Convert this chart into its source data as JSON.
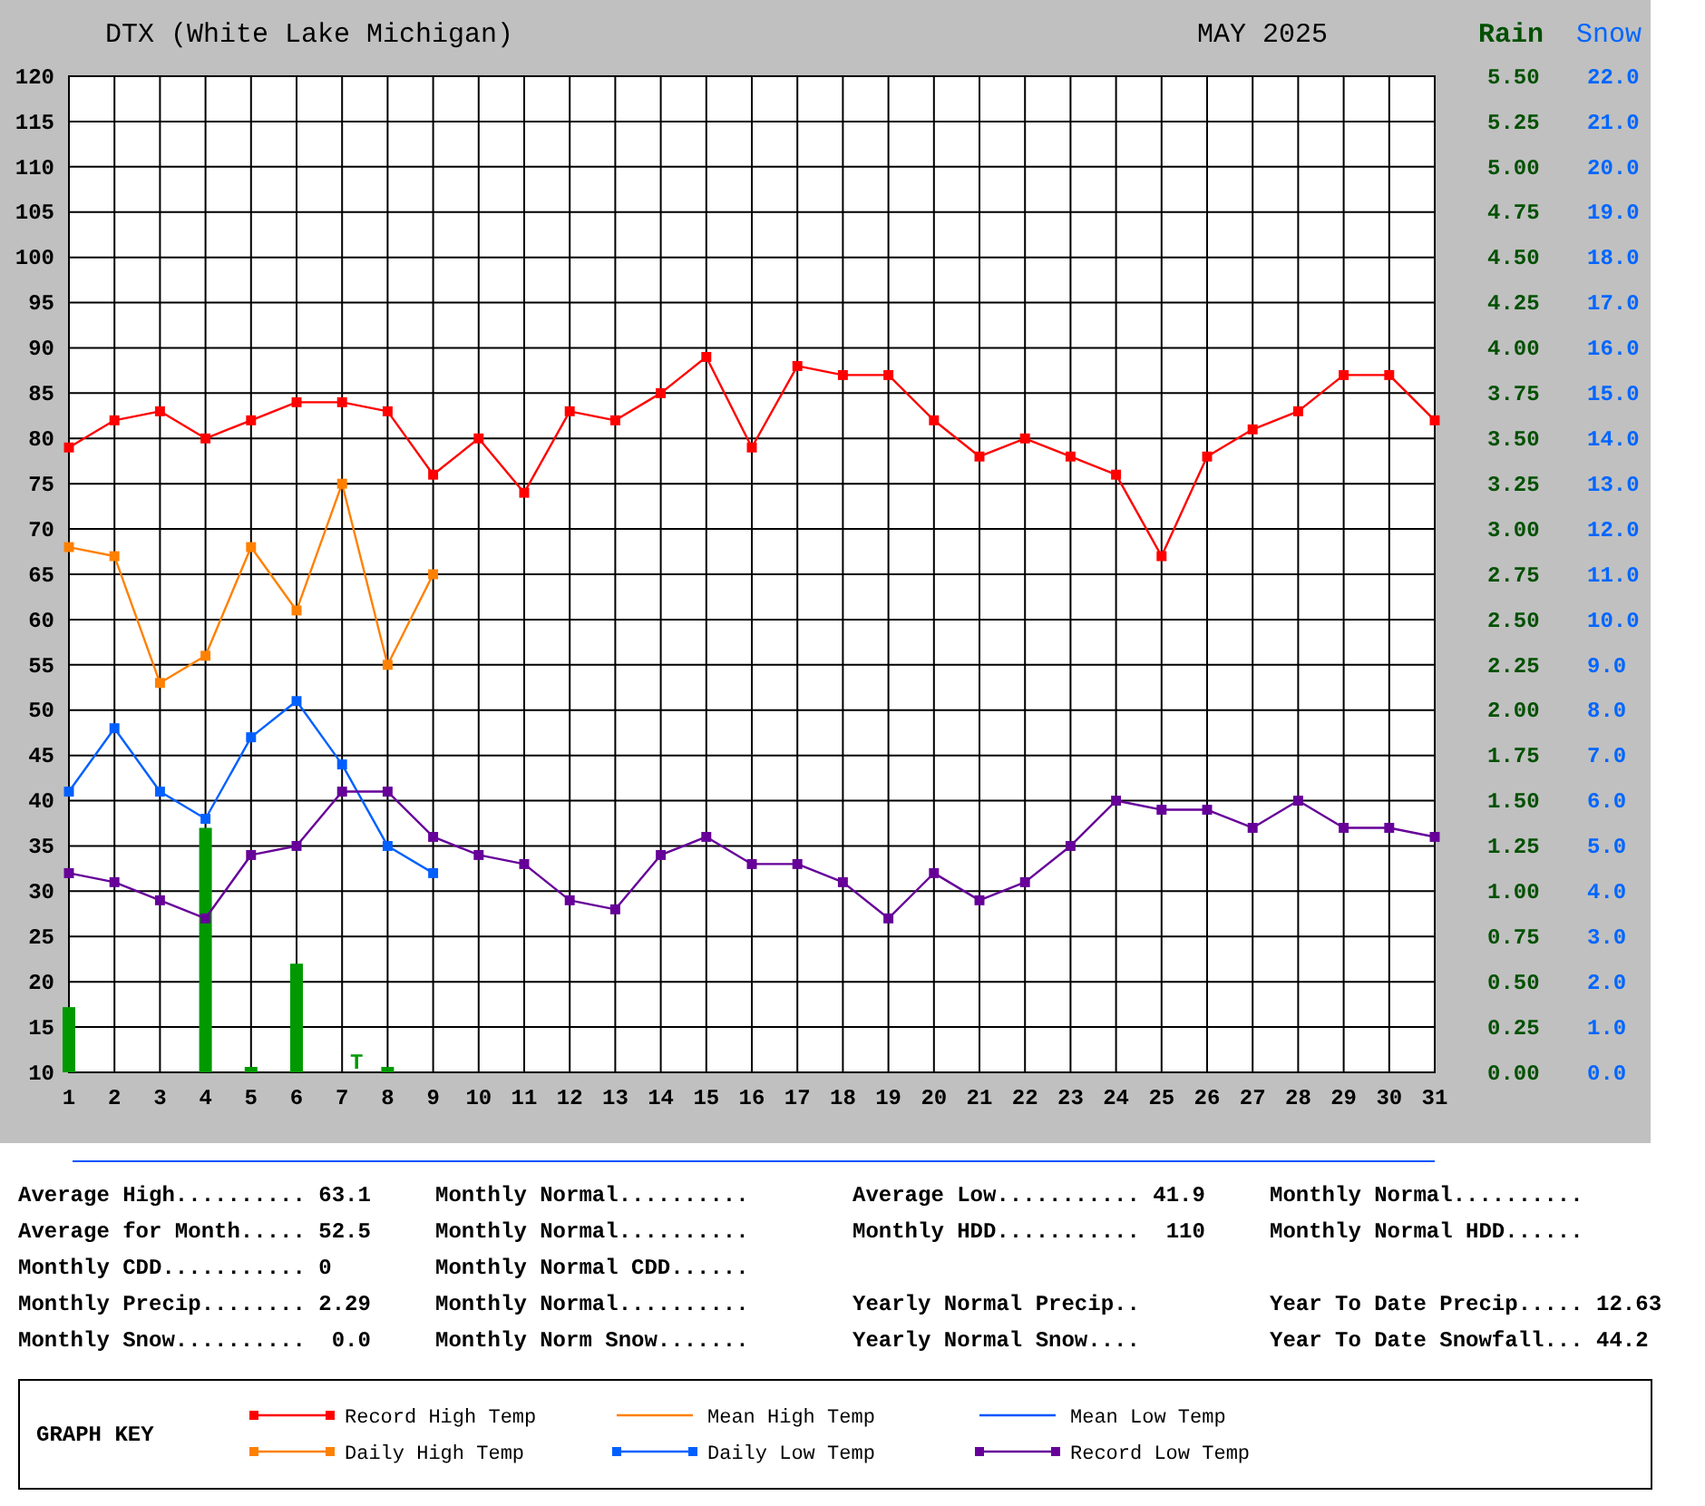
{
  "chart_data": {
    "type": "line",
    "title": "DTX (White Lake Michigan)",
    "subtitle": "MAY 2025",
    "y2label": "Rain",
    "y3label": "Snow",
    "legend_title": "GRAPH KEY",
    "legend": "bottom",
    "grid": true,
    "x": [
      1,
      2,
      3,
      4,
      5,
      6,
      7,
      8,
      9,
      10,
      11,
      12,
      13,
      14,
      15,
      16,
      17,
      18,
      19,
      20,
      21,
      22,
      23,
      24,
      25,
      26,
      27,
      28,
      29,
      30,
      31
    ],
    "xlim": [
      1,
      31
    ],
    "xticks": [
      1,
      2,
      3,
      4,
      5,
      6,
      7,
      8,
      9,
      10,
      11,
      12,
      13,
      14,
      15,
      16,
      17,
      18,
      19,
      20,
      21,
      22,
      23,
      24,
      25,
      26,
      27,
      28,
      29,
      30,
      31
    ],
    "ylim": [
      10,
      120
    ],
    "yticks": [
      10,
      15,
      20,
      25,
      30,
      35,
      40,
      45,
      50,
      55,
      60,
      65,
      70,
      75,
      80,
      85,
      90,
      95,
      100,
      105,
      110,
      115,
      120
    ],
    "y2lim": [
      0,
      5.5
    ],
    "y2ticks": [
      {
        "value": 0,
        "label": "0.00"
      },
      {
        "value": 0.25,
        "label": "0.25"
      },
      {
        "value": 0.5,
        "label": "0.50"
      },
      {
        "value": 0.75,
        "label": "0.75"
      },
      {
        "value": 1,
        "label": "1.00"
      },
      {
        "value": 1.25,
        "label": "1.25"
      },
      {
        "value": 1.5,
        "label": "1.50"
      },
      {
        "value": 1.75,
        "label": "1.75"
      },
      {
        "value": 2,
        "label": "2.00"
      },
      {
        "value": 2.25,
        "label": "2.25"
      },
      {
        "value": 2.5,
        "label": "2.50"
      },
      {
        "value": 2.75,
        "label": "2.75"
      },
      {
        "value": 3,
        "label": "3.00"
      },
      {
        "value": 3.25,
        "label": "3.25"
      },
      {
        "value": 3.5,
        "label": "3.50"
      },
      {
        "value": 3.75,
        "label": "3.75"
      },
      {
        "value": 4,
        "label": "4.00"
      },
      {
        "value": 4.25,
        "label": "4.25"
      },
      {
        "value": 4.5,
        "label": "4.50"
      },
      {
        "value": 4.75,
        "label": "4.75"
      },
      {
        "value": 5,
        "label": "5.00"
      },
      {
        "value": 5.25,
        "label": "5.25"
      },
      {
        "value": 5.5,
        "label": "5.50"
      }
    ],
    "y3lim": [
      0,
      22
    ],
    "y3ticks": [
      {
        "value": 0,
        "label": "0.0"
      },
      {
        "value": 1,
        "label": "1.0"
      },
      {
        "value": 2,
        "label": "2.0"
      },
      {
        "value": 3,
        "label": "3.0"
      },
      {
        "value": 4,
        "label": "4.0"
      },
      {
        "value": 5,
        "label": "5.0"
      },
      {
        "value": 6,
        "label": "6.0"
      },
      {
        "value": 7,
        "label": "7.0"
      },
      {
        "value": 8,
        "label": "8.0"
      },
      {
        "value": 9,
        "label": "9.0"
      },
      {
        "value": 10,
        "label": "10.0"
      },
      {
        "value": 11,
        "label": "11.0"
      },
      {
        "value": 12,
        "label": "12.0"
      },
      {
        "value": 13,
        "label": "13.0"
      },
      {
        "value": 14,
        "label": "14.0"
      },
      {
        "value": 15,
        "label": "15.0"
      },
      {
        "value": 16,
        "label": "16.0"
      },
      {
        "value": 17,
        "label": "17.0"
      },
      {
        "value": 18,
        "label": "18.0"
      },
      {
        "value": 19,
        "label": "19.0"
      },
      {
        "value": 20,
        "label": "20.0"
      },
      {
        "value": 21,
        "label": "21.0"
      },
      {
        "value": 22,
        "label": "22.0"
      }
    ],
    "series": [
      {
        "name": "Record High Temp",
        "color": "#ff0000",
        "marker": "square",
        "values": [
          79,
          82,
          83,
          80,
          82,
          84,
          84,
          83,
          76,
          80,
          74,
          83,
          82,
          85,
          89,
          79,
          88,
          87,
          87,
          82,
          78,
          80,
          78,
          76,
          67,
          78,
          81,
          83,
          87,
          87,
          82
        ]
      },
      {
        "name": "Mean High Temp",
        "color": "#ff8000",
        "marker": "none",
        "values": [
          null,
          null,
          null,
          null,
          null,
          null,
          null,
          null,
          null,
          null,
          null,
          null,
          null,
          null,
          null,
          null,
          null,
          null,
          null,
          null,
          null,
          null,
          null,
          null,
          null,
          null,
          null,
          null,
          null,
          null,
          null
        ]
      },
      {
        "name": "Mean Low Temp",
        "color": "#0055ff",
        "marker": "none",
        "values": [
          null,
          null,
          null,
          null,
          null,
          null,
          null,
          null,
          null,
          null,
          null,
          null,
          null,
          null,
          null,
          null,
          null,
          null,
          null,
          null,
          null,
          null,
          null,
          null,
          null,
          null,
          null,
          null,
          null,
          null,
          null
        ]
      },
      {
        "name": "Daily High Temp",
        "color": "#ff8000",
        "marker": "square",
        "values": [
          68,
          67,
          53,
          56,
          68,
          61,
          75,
          55,
          65,
          null,
          null,
          null,
          null,
          null,
          null,
          null,
          null,
          null,
          null,
          null,
          null,
          null,
          null,
          null,
          null,
          null,
          null,
          null,
          null,
          null,
          null
        ]
      },
      {
        "name": "Daily Low Temp",
        "color": "#0060ff",
        "marker": "square",
        "values": [
          41,
          48,
          41,
          38,
          47,
          51,
          44,
          35,
          32,
          null,
          null,
          null,
          null,
          null,
          null,
          null,
          null,
          null,
          null,
          null,
          null,
          null,
          null,
          null,
          null,
          null,
          null,
          null,
          null,
          null,
          null
        ]
      },
      {
        "name": "Record Low Temp",
        "color": "#660099",
        "marker": "square",
        "values": [
          32,
          31,
          29,
          27,
          34,
          35,
          41,
          41,
          36,
          34,
          33,
          29,
          28,
          34,
          36,
          33,
          33,
          31,
          27,
          32,
          29,
          31,
          35,
          40,
          39,
          39,
          37,
          40,
          37,
          37,
          36
        ]
      },
      {
        "type": "bar",
        "axis": "y2",
        "color": "#009900",
        "values": [
          0.36,
          0,
          0,
          1.35,
          0.03,
          0.6,
          0,
          0.03,
          0,
          null,
          null,
          null,
          null,
          null,
          null,
          null,
          null,
          null,
          null,
          null,
          null,
          null,
          null,
          null,
          null,
          null,
          null,
          null,
          null,
          null,
          null
        ],
        "value_labels": [
          null,
          null,
          null,
          null,
          null,
          null,
          "T",
          null,
          null,
          null,
          null,
          null,
          null,
          null,
          null,
          null,
          null,
          null,
          null,
          null,
          null,
          null,
          null,
          null,
          null,
          null,
          null,
          null,
          null,
          null,
          null
        ]
      }
    ],
    "annotations": [
      "Average High.......... 63.1",
      "Monthly Normal..........",
      "Average Low........... 41.9",
      "Monthly Normal..........",
      "Average for Month..... 52.5",
      "Monthly Normal..........",
      "Monthly HDD...........  110",
      "Monthly Normal HDD......",
      "Monthly CDD........... 0",
      "Monthly Normal CDD......",
      "Monthly Precip........ 2.29",
      "Monthly Normal..........",
      "Yearly Normal Precip..",
      "Year To Date Precip..... 12.63",
      "Monthly Snow..........  0.0",
      "Monthly Norm Snow.......",
      "Yearly Normal Snow....",
      "Year To Date Snowfall... 44.2"
    ]
  }
}
